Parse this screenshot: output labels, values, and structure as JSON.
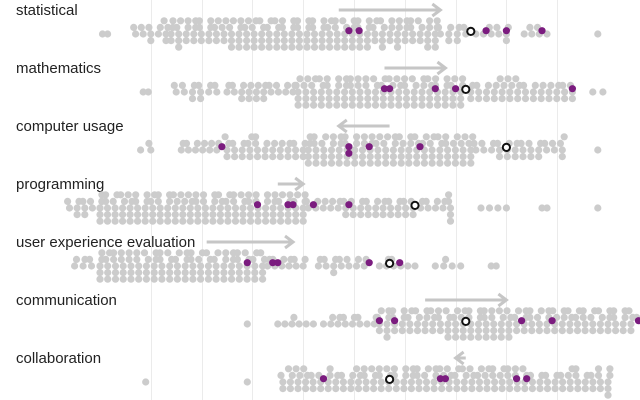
{
  "chart_data": {
    "type": "beeswarm",
    "title": "",
    "xlabel": "",
    "ylabel": "",
    "xlim": [
      0,
      100
    ],
    "grid": true,
    "grid_ticks": [
      10,
      20,
      30,
      40,
      50,
      60,
      70,
      80,
      90
    ],
    "legend": "none",
    "colors": {
      "population": "#cccccc",
      "highlight": "#7b1c7f",
      "focal_stroke": "#111111",
      "arrow": "#c6c6c6",
      "label": "#222222",
      "grid": "#ebebeb"
    },
    "rows": [
      {
        "label": "statistical",
        "arrow": {
          "from": 47,
          "to": 67
        },
        "focal": 73,
        "highlighted": [
          49,
          51,
          76,
          80,
          87
        ],
        "clusters": [
          {
            "from": 0.5,
            "to": 1.5,
            "count": 2
          },
          {
            "from": 7,
            "to": 13,
            "count": 13
          },
          {
            "from": 14,
            "to": 66,
            "count": 170
          },
          {
            "from": 67,
            "to": 72,
            "count": 10
          },
          {
            "from": 74,
            "to": 80,
            "count": 9
          },
          {
            "from": 83.5,
            "to": 88,
            "count": 6
          },
          {
            "from": 98,
            "to": 98,
            "count": 1
          }
        ]
      },
      {
        "label": "mathematics",
        "arrow": {
          "from": 56,
          "to": 68
        },
        "focal": 72,
        "highlighted": [
          56,
          57,
          66,
          70,
          93
        ],
        "clusters": [
          {
            "from": 8.5,
            "to": 9.5,
            "count": 2
          },
          {
            "from": 15,
            "to": 23,
            "count": 14
          },
          {
            "from": 25,
            "to": 38,
            "count": 24
          },
          {
            "from": 39,
            "to": 71,
            "count": 110
          },
          {
            "from": 73,
            "to": 93,
            "count": 45
          },
          {
            "from": 97,
            "to": 99,
            "count": 2
          }
        ]
      },
      {
        "label": "computer usage",
        "arrow": {
          "from": 57,
          "to": 47
        },
        "focal": 80,
        "highlighted": [
          24,
          49,
          49,
          53,
          63
        ],
        "clusters": [
          {
            "from": 8,
            "to": 10,
            "count": 3
          },
          {
            "from": 16,
            "to": 23,
            "count": 12
          },
          {
            "from": 25,
            "to": 40,
            "count": 36
          },
          {
            "from": 41,
            "to": 73,
            "count": 120
          },
          {
            "from": 74,
            "to": 91,
            "count": 32
          },
          {
            "from": 98,
            "to": 98,
            "count": 1
          }
        ]
      },
      {
        "label": "programming",
        "arrow": {
          "from": 35,
          "to": 40
        },
        "focal": 62,
        "highlighted": [
          31,
          37,
          38,
          42,
          49
        ],
        "clusters": [
          {
            "from": -6,
            "to": 0,
            "count": 12
          },
          {
            "from": 0,
            "to": 40,
            "count": 140
          },
          {
            "from": 41,
            "to": 69,
            "count": 55
          },
          {
            "from": 75,
            "to": 80,
            "count": 4
          },
          {
            "from": 87,
            "to": 88,
            "count": 2
          },
          {
            "from": 98,
            "to": 98,
            "count": 1
          }
        ]
      },
      {
        "label": "user experience evaluation",
        "arrow": {
          "from": 21,
          "to": 38
        },
        "focal": 57,
        "highlighted": [
          29,
          34,
          35,
          53,
          59
        ],
        "clusters": [
          {
            "from": -5,
            "to": 0,
            "count": 8
          },
          {
            "from": 0,
            "to": 32,
            "count": 130
          },
          {
            "from": 33,
            "to": 40,
            "count": 12
          },
          {
            "from": 43,
            "to": 52,
            "count": 15
          },
          {
            "from": 55,
            "to": 62,
            "count": 8
          },
          {
            "from": 66,
            "to": 71,
            "count": 5
          },
          {
            "from": 77,
            "to": 78,
            "count": 2
          }
        ]
      },
      {
        "label": "communication",
        "arrow": {
          "from": 64,
          "to": 80
        },
        "focal": 72,
        "highlighted": [
          55,
          58,
          83,
          89,
          106
        ],
        "clusters": [
          {
            "from": 29,
            "to": 29,
            "count": 1
          },
          {
            "from": 35,
            "to": 42,
            "count": 7
          },
          {
            "from": 44,
            "to": 54,
            "count": 14
          },
          {
            "from": 55,
            "to": 106,
            "count": 150
          }
        ]
      },
      {
        "label": "collaboration",
        "arrow": {
          "from": 72,
          "to": 70
        },
        "focal": 57,
        "highlighted": [
          44,
          67,
          68,
          82,
          84
        ],
        "clusters": [
          {
            "from": 9,
            "to": 9,
            "count": 1
          },
          {
            "from": 29,
            "to": 29,
            "count": 1
          },
          {
            "from": 36,
            "to": 100,
            "count": 170
          }
        ]
      }
    ]
  }
}
